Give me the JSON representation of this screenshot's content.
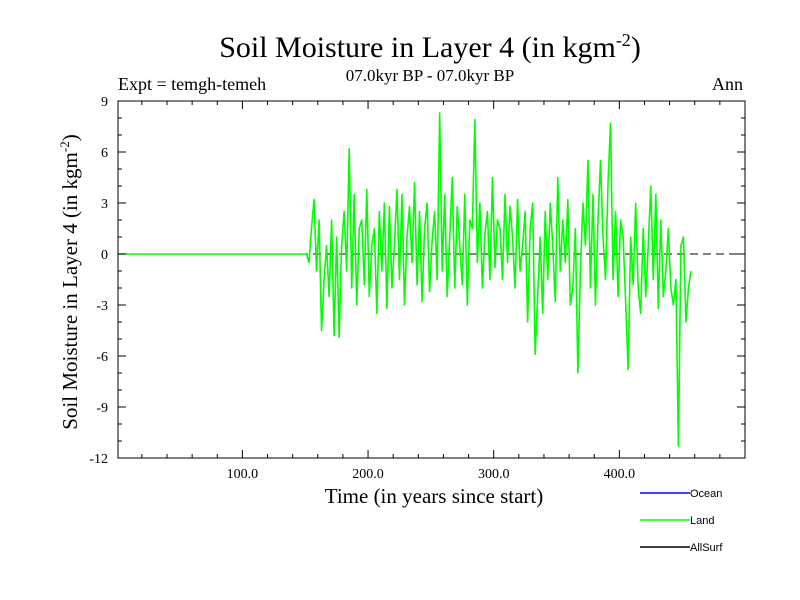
{
  "header": {
    "title": "Soil Moisture in Layer 4 (in kgm",
    "title_exp": "-2",
    "title_close": ")",
    "subtitle": "07.0kyr BP - 07.0kyr BP",
    "expt": "Expt = temgh-temeh",
    "season": "Ann"
  },
  "axes": {
    "xlabel": "Time (in years since start)",
    "ylabel": "Soil Moisture in Layer 4 (in kgm",
    "ylabel_exp": "-2",
    "ylabel_close": ")"
  },
  "chart_data": {
    "type": "line",
    "title": "Soil Moisture in Layer 4 (in kgm-2)",
    "xlabel": "Time (in years since start)",
    "ylabel": "Soil Moisture in Layer 4 (in kgm-2)",
    "xlim": [
      1,
      500
    ],
    "ylim": [
      -12,
      9
    ],
    "xticks": [
      100,
      200,
      300,
      400
    ],
    "xtick_labels": [
      "100.0",
      "200.0",
      "300.0",
      "400.0"
    ],
    "yticks": [
      9,
      6,
      3,
      0,
      -3,
      -6,
      -9,
      -12
    ],
    "ytick_labels": [
      "9",
      "6",
      "3",
      "0",
      "-3",
      "-6",
      "-9",
      "-12"
    ],
    "zero_line": "dashed",
    "legend": [
      {
        "name": "Ocean",
        "color": "#0000ff"
      },
      {
        "name": "Land",
        "color": "#00ff00"
      },
      {
        "name": "AllSurf",
        "color": "#000000"
      }
    ],
    "series": [
      {
        "name": "Land",
        "color": "#00ff00",
        "x_start": 1,
        "x_step": 2,
        "values": [
          0,
          0,
          0,
          0,
          0,
          0,
          0,
          0,
          0,
          0,
          0,
          0,
          0,
          0,
          0,
          0,
          0,
          0,
          0,
          0,
          0,
          0,
          0,
          0,
          0,
          0,
          0,
          0,
          0,
          0,
          0,
          0,
          0,
          0,
          0,
          0,
          0,
          0,
          0,
          0,
          0,
          0,
          0,
          0,
          0,
          0,
          0,
          0,
          0,
          0,
          0,
          0,
          0,
          0,
          0,
          0,
          0,
          0,
          0,
          0,
          0,
          0,
          0,
          0,
          0,
          0,
          0,
          0,
          0,
          0,
          0,
          0,
          0,
          0,
          0,
          0,
          -0.5,
          1.5,
          3.2,
          -1.0,
          2.0,
          -4.5,
          -1.5,
          0.5,
          -2.5,
          2.0,
          -4.8,
          1.0,
          -4.9,
          0.5,
          2.5,
          -1.0,
          6.2,
          -2.0,
          3.5,
          -3.0,
          1.5,
          2.0,
          -1.8,
          3.8,
          -2.5,
          0.5,
          1.5,
          -3.5,
          2.5,
          -1.0,
          3.0,
          -3.2,
          2.8,
          -2.0,
          0.5,
          3.8,
          -1.5,
          3.5,
          -3.0,
          1.0,
          2.8,
          -0.5,
          4.2,
          -1.8,
          2.5,
          -2.8,
          1.5,
          3.0,
          -2.2,
          0.8,
          2.5,
          -1.5,
          8.3,
          -1.0,
          3.5,
          -2.5,
          1.0,
          4.5,
          -2.0,
          2.8,
          0.5,
          -1.8,
          3.5,
          -3.0,
          2.0,
          1.5,
          7.9,
          -0.5,
          3.0,
          -2.0,
          1.2,
          2.5,
          -1.5,
          4.5,
          -0.8,
          2.0,
          1.5,
          -1.5,
          3.5,
          -0.5,
          2.8,
          1.0,
          -2.0,
          3.2,
          -1.0,
          0.5,
          2.5,
          -4.0,
          1.5,
          3.0,
          -5.9,
          -2.5,
          1.0,
          -3.5,
          2.5,
          -1.5,
          3.0,
          0.5,
          -2.8,
          4.5,
          -1.0,
          2.0,
          -0.5,
          3.2,
          -3.0,
          -2.0,
          1.5,
          -7.0,
          -1.0,
          3.0,
          0.5,
          5.5,
          -2.0,
          3.5,
          -3.0,
          2.0,
          5.5,
          1.0,
          -1.5,
          4.2,
          7.7,
          -1.5,
          2.5,
          -2.5,
          2.0,
          1.0,
          -2.8,
          -6.8,
          1.0,
          -1.8,
          3.0,
          -2.0,
          -3.5,
          1.5,
          -2.5,
          0.5,
          4.0,
          -1.5,
          3.5,
          -3.2,
          2.0,
          -2.5,
          -1.0,
          1.5,
          -2.0,
          -3.0,
          -1.5,
          -11.3,
          0.5,
          1.0,
          -4.0,
          -2.0,
          -1.0
        ]
      }
    ]
  }
}
